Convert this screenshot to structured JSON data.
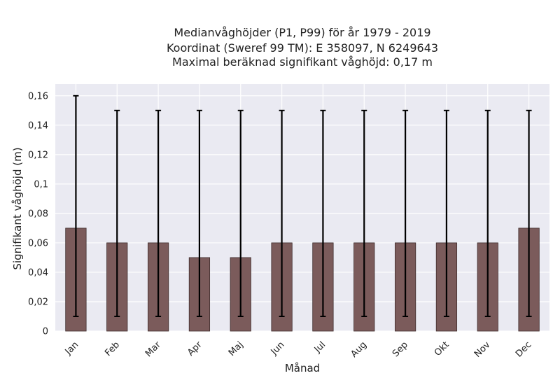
{
  "chart_data": {
    "type": "bar",
    "title": [
      "Medianvåghöjder (P1, P99) för år 1979 - 2019",
      "Koordinat (Sweref 99 TM): E 358097, N 6249643",
      "Maximal beräknad signifikant våghöjd: 0,17 m"
    ],
    "xlabel": "Månad",
    "ylabel": "Signifikant våghöjd (m)",
    "categories": [
      "Jan",
      "Feb",
      "Mar",
      "Apr",
      "Maj",
      "Jun",
      "Jul",
      "Aug",
      "Sep",
      "Okt",
      "Nov",
      "Dec"
    ],
    "values": [
      0.07,
      0.06,
      0.06,
      0.05,
      0.05,
      0.06,
      0.06,
      0.06,
      0.06,
      0.06,
      0.06,
      0.07
    ],
    "error_low": [
      0.01,
      0.01,
      0.01,
      0.01,
      0.01,
      0.01,
      0.01,
      0.01,
      0.01,
      0.01,
      0.01,
      0.01
    ],
    "error_high": [
      0.16,
      0.15,
      0.15,
      0.15,
      0.15,
      0.15,
      0.15,
      0.15,
      0.15,
      0.15,
      0.15,
      0.15
    ],
    "ylim": [
      0,
      0.168
    ],
    "yticks": [
      0,
      0.02,
      0.04,
      0.06,
      0.08,
      0.1,
      0.12,
      0.14,
      0.16
    ],
    "ytick_labels": [
      "0",
      "0,02",
      "0,04",
      "0,06",
      "0,08",
      "0,1",
      "0,12",
      "0,14",
      "0,16"
    ],
    "grid": true,
    "colors": {
      "bar": "#7b5b5b",
      "bar_edge": "#3e2c2c",
      "error": "#000000",
      "plot_bg": "#eaeaf2",
      "grid": "#ffffff"
    }
  }
}
